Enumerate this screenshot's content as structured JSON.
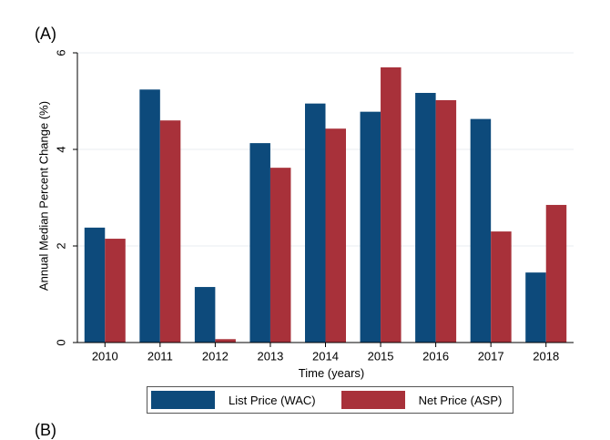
{
  "panel_label": "(A)",
  "next_panel_label": "(B)",
  "colors": {
    "list": "#0d4a7b",
    "net": "#a8313a",
    "grid": "#e8eef0",
    "axis": "#000000"
  },
  "chart_data": {
    "type": "bar",
    "categories": [
      "2010",
      "2011",
      "2012",
      "2013",
      "2014",
      "2015",
      "2016",
      "2017",
      "2018"
    ],
    "series": [
      {
        "name": "List Price (WAC)",
        "values": [
          2.38,
          5.24,
          1.15,
          4.13,
          4.95,
          4.78,
          5.17,
          4.63,
          1.45
        ]
      },
      {
        "name": "Net Price (ASP)",
        "values": [
          2.15,
          4.6,
          0.07,
          3.62,
          4.43,
          5.7,
          5.02,
          2.3,
          2.85
        ]
      }
    ],
    "xlabel": "Time (years)",
    "ylabel": "Annual Median Percent Change (%)",
    "ylim": [
      0,
      6
    ],
    "yticks": [
      "0",
      "2",
      "4",
      "6"
    ],
    "grid": true,
    "legend_position": "bottom"
  }
}
